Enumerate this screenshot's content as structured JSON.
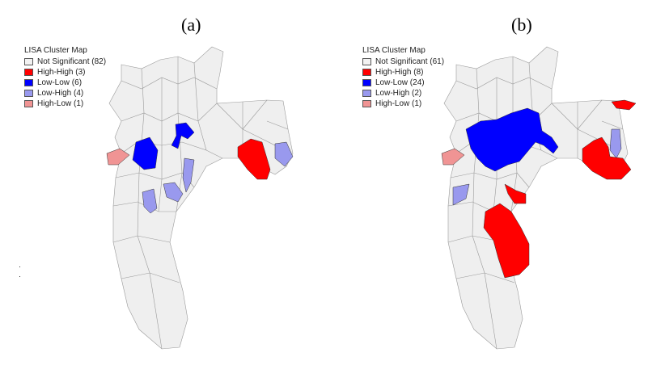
{
  "figure": {
    "panels": [
      {
        "label": "(a)",
        "legend": {
          "title": "LISA Cluster Map",
          "items": [
            {
              "text": "Not Significant (82)",
              "color": "#f2f2f2"
            },
            {
              "text": "High-High (3)",
              "color": "#ff0000"
            },
            {
              "text": "Low-Low (6)",
              "color": "#0000ff"
            },
            {
              "text": "Low-High (4)",
              "color": "#9999ee"
            },
            {
              "text": "High-Low (1)",
              "color": "#f09494"
            }
          ]
        }
      },
      {
        "label": "(b)",
        "legend": {
          "title": "LISA Cluster Map",
          "items": [
            {
              "text": "Not Significant (61)",
              "color": "#f2f2f2"
            },
            {
              "text": "High-High (8)",
              "color": "#ff0000"
            },
            {
              "text": "Low-Low (24)",
              "color": "#0000ff"
            },
            {
              "text": "Low-High (2)",
              "color": "#9999ee"
            },
            {
              "text": "High-Low (1)",
              "color": "#f09494"
            }
          ]
        }
      }
    ]
  }
}
